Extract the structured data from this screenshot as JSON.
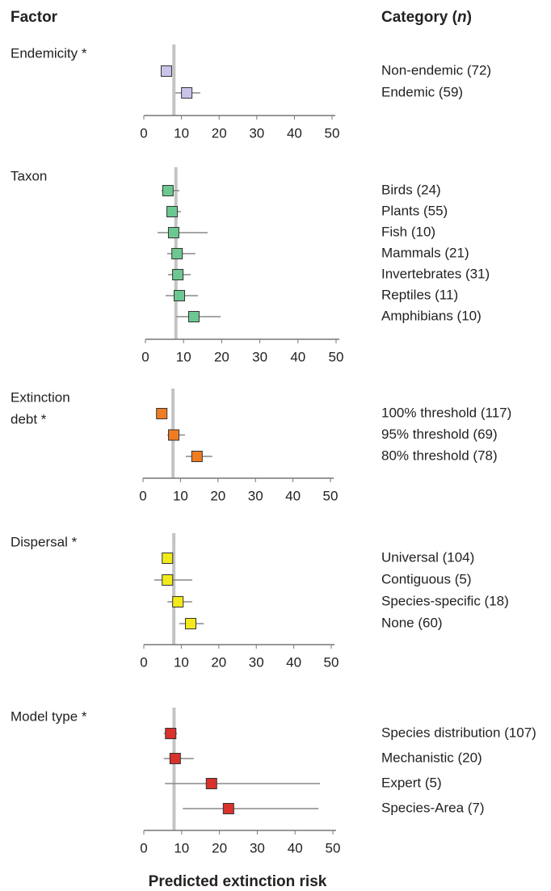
{
  "header": {
    "factor": "Factor",
    "category": [
      "Category (",
      "n",
      ")"
    ]
  },
  "axis_label": "Predicted extinction risk",
  "chart_data": [
    {
      "type": "forest",
      "title": "Endemicity *",
      "color": "#c8c4ea",
      "categories": [
        "Non-endemic (72)",
        "Endemic (59)"
      ],
      "values": [
        6.0,
        11.4
      ],
      "errors": [
        [
          4.7,
          7.5
        ],
        [
          8.4,
          15.0
        ]
      ],
      "reference": 8,
      "xlim": [
        0,
        50
      ],
      "xticks": [
        0,
        10,
        20,
        30,
        40,
        50
      ]
    },
    {
      "type": "forest",
      "title": "Taxon",
      "color": "#6cc890",
      "categories": [
        "Birds (24)",
        "Plants (55)",
        "Fish (10)",
        "Mammals (21)",
        "Invertebrates (31)",
        "Reptiles (11)",
        "Amphibians (10)"
      ],
      "values": [
        5.9,
        7.0,
        7.4,
        8.3,
        8.5,
        8.9,
        12.7
      ],
      "errors": [
        [
          4.2,
          8.9
        ],
        [
          5.5,
          9.3
        ],
        [
          3.2,
          16.3
        ],
        [
          5.7,
          13.1
        ],
        [
          5.9,
          11.9
        ],
        [
          5.3,
          13.8
        ],
        [
          8.1,
          19.7
        ]
      ],
      "reference": 8,
      "xlim": [
        0,
        50
      ],
      "xticks": [
        0,
        10,
        20,
        30,
        40,
        50
      ]
    },
    {
      "type": "forest",
      "title": [
        "Extinction",
        "debt *"
      ],
      "color": "#f07c22",
      "categories": [
        "100% threshold (117)",
        "95% threshold (69)",
        "80% threshold (78)"
      ],
      "values": [
        5.0,
        8.2,
        14.4
      ],
      "errors": [
        [
          3.9,
          6.0
        ],
        [
          6.5,
          11.2
        ],
        [
          11.4,
          18.5
        ]
      ],
      "reference": 8,
      "xlim": [
        0,
        50
      ],
      "xticks": [
        0,
        10,
        20,
        30,
        40,
        50
      ]
    },
    {
      "type": "forest",
      "title": "Dispersal *",
      "color": "#f2ea1a",
      "categories": [
        "Universal (104)",
        "Contiguous (5)",
        "Species-specific (18)",
        "None (60)"
      ],
      "values": [
        6.3,
        6.3,
        9.1,
        12.5
      ],
      "errors": [
        [
          5.2,
          7.5
        ],
        [
          2.8,
          12.9
        ],
        [
          6.3,
          12.9
        ],
        [
          9.5,
          16.0
        ]
      ],
      "reference": 8,
      "xlim": [
        0,
        50
      ],
      "xticks": [
        0,
        10,
        20,
        30,
        40,
        50
      ]
    },
    {
      "type": "forest",
      "title": "Model type *",
      "color": "#d9312b",
      "categories": [
        "Species distribution (107)",
        "Mechanistic (20)",
        "Expert (5)",
        "Species-Area (7)"
      ],
      "values": [
        7.1,
        8.3,
        17.9,
        22.4
      ],
      "errors": [
        [
          5.3,
          8.8
        ],
        [
          5.3,
          13.2
        ],
        [
          5.6,
          46.6
        ],
        [
          10.3,
          46.2
        ]
      ],
      "reference": 8,
      "xlim": [
        0,
        50
      ],
      "xticks": [
        0,
        10,
        20,
        30,
        40,
        50
      ]
    }
  ]
}
